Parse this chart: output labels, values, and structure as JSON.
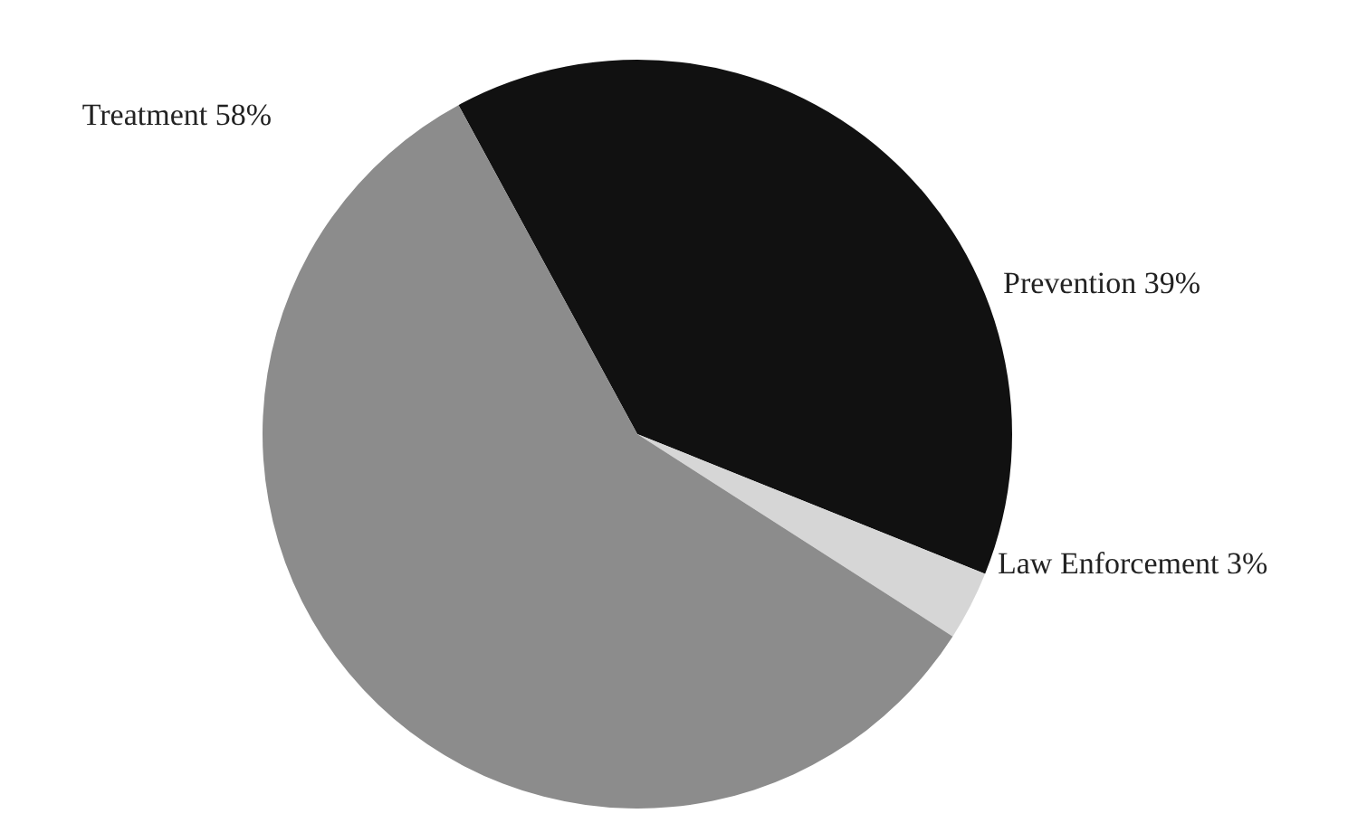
{
  "chart_data": {
    "type": "pie",
    "categories": [
      "Prevention",
      "Law Enforcement",
      "Treatment"
    ],
    "values": [
      39,
      3,
      58
    ],
    "value_labels": [
      "39%",
      "3%",
      "58%"
    ],
    "colors": [
      "#111111",
      "#d6d6d6",
      "#8c8c8c"
    ]
  }
}
